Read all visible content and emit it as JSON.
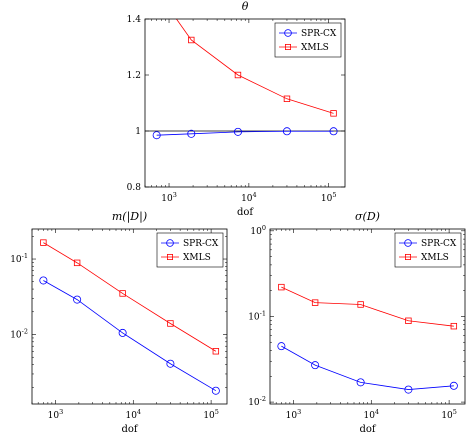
{
  "chart_data": [
    {
      "type": "line",
      "title": "θ",
      "xlabel": "dof",
      "ylabel": "",
      "xscale": "log",
      "yscale": "linear",
      "xlim": [
        500,
        160000
      ],
      "ylim": [
        0.8,
        1.4
      ],
      "xticks": [
        1000,
        10000,
        100000
      ],
      "xtick_labels": [
        [
          "10",
          "3"
        ],
        [
          "10",
          "4"
        ],
        [
          "10",
          "5"
        ]
      ],
      "yticks": [
        0.8,
        1,
        1.2,
        1.4
      ],
      "ytick_labels": [
        [
          "0.8"
        ],
        [
          "1"
        ],
        [
          "1.2"
        ],
        [
          "1.4"
        ]
      ],
      "reference_line": 1,
      "legend": "top-right",
      "grid": false,
      "series": [
        {
          "name": "SPR-CX",
          "color": "#0000ff",
          "marker": "circle",
          "x": [
            700,
            1900,
            7300,
            30000,
            115000
          ],
          "y": [
            0.985,
            0.99,
            0.997,
            0.999,
            0.999
          ]
        },
        {
          "name": "XMLS",
          "color": "#ff0000",
          "marker": "square",
          "x": [
            700,
            1900,
            7300,
            30000,
            115000
          ],
          "y": [
            1.5,
            1.325,
            1.2,
            1.115,
            1.063
          ]
        }
      ]
    },
    {
      "type": "line",
      "title": "m(|D|)",
      "xlabel": "dof",
      "ylabel": "",
      "xscale": "log",
      "yscale": "log",
      "xlim": [
        500,
        160000
      ],
      "ylim": [
        0.0012,
        0.25
      ],
      "xticks": [
        1000,
        10000,
        100000
      ],
      "xtick_labels": [
        [
          "10",
          "3"
        ],
        [
          "10",
          "4"
        ],
        [
          "10",
          "5"
        ]
      ],
      "yticks": [
        0.01,
        0.1
      ],
      "ytick_labels": [
        [
          "10",
          "-2"
        ],
        [
          "10",
          "-1"
        ]
      ],
      "legend": "top-right",
      "grid": false,
      "series": [
        {
          "name": "SPR-CX",
          "color": "#0000ff",
          "marker": "circle",
          "x": [
            700,
            1900,
            7300,
            30000,
            115000
          ],
          "y": [
            0.052,
            0.029,
            0.0105,
            0.0041,
            0.0018
          ]
        },
        {
          "name": "XMLS",
          "color": "#ff0000",
          "marker": "square",
          "x": [
            700,
            1900,
            7300,
            30000,
            115000
          ],
          "y": [
            0.165,
            0.089,
            0.035,
            0.014,
            0.006
          ]
        }
      ]
    },
    {
      "type": "line",
      "title": "σ(D)",
      "xlabel": "dof",
      "ylabel": "",
      "xscale": "log",
      "yscale": "log",
      "xlim": [
        500,
        160000
      ],
      "ylim": [
        0.0095,
        1.05
      ],
      "xticks": [
        1000,
        10000,
        100000
      ],
      "xtick_labels": [
        [
          "10",
          "3"
        ],
        [
          "10",
          "4"
        ],
        [
          "10",
          "5"
        ]
      ],
      "yticks": [
        0.01,
        0.1,
        1
      ],
      "ytick_labels": [
        [
          "10",
          "-2"
        ],
        [
          "10",
          "-1"
        ],
        [
          "10",
          "0"
        ]
      ],
      "legend": "top-right",
      "grid": false,
      "series": [
        {
          "name": "SPR-CX",
          "color": "#0000ff",
          "marker": "circle",
          "x": [
            700,
            1900,
            7300,
            30000,
            115000
          ],
          "y": [
            0.045,
            0.027,
            0.017,
            0.014,
            0.0155
          ]
        },
        {
          "name": "XMLS",
          "color": "#ff0000",
          "marker": "square",
          "x": [
            700,
            1900,
            7300,
            30000,
            115000
          ],
          "y": [
            0.22,
            0.145,
            0.138,
            0.089,
            0.077
          ]
        }
      ]
    }
  ]
}
